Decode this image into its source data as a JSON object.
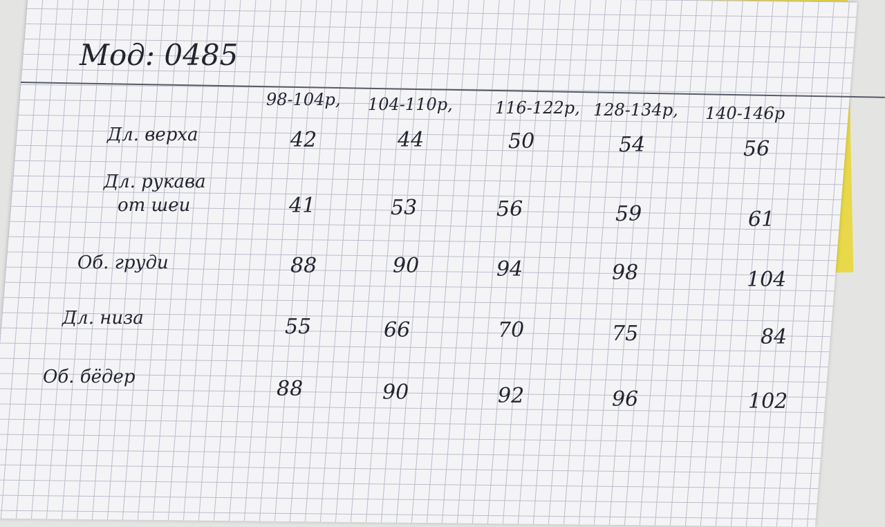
{
  "title": "Мод: 0485",
  "sizes": [
    "98-104р,",
    "104-110р,",
    "116-122р,",
    "128-134р,",
    "140-146р"
  ],
  "rows": [
    {
      "label": "Дл. верха",
      "values": [
        "42",
        "44",
        "50",
        "54",
        "56"
      ]
    },
    {
      "label": "Дл. рукава",
      "label2": "от шеи",
      "values": [
        "41",
        "53",
        "56",
        "59",
        "61"
      ]
    },
    {
      "label": "Об. груди",
      "values": [
        "88",
        "90",
        "94",
        "98",
        "104"
      ]
    },
    {
      "label": "Дл. низа",
      "values": [
        "55",
        "66",
        "70",
        "75",
        "84"
      ]
    },
    {
      "label": "Об. бёдер",
      "values": [
        "88",
        "90",
        "92",
        "96",
        "102"
      ]
    }
  ]
}
